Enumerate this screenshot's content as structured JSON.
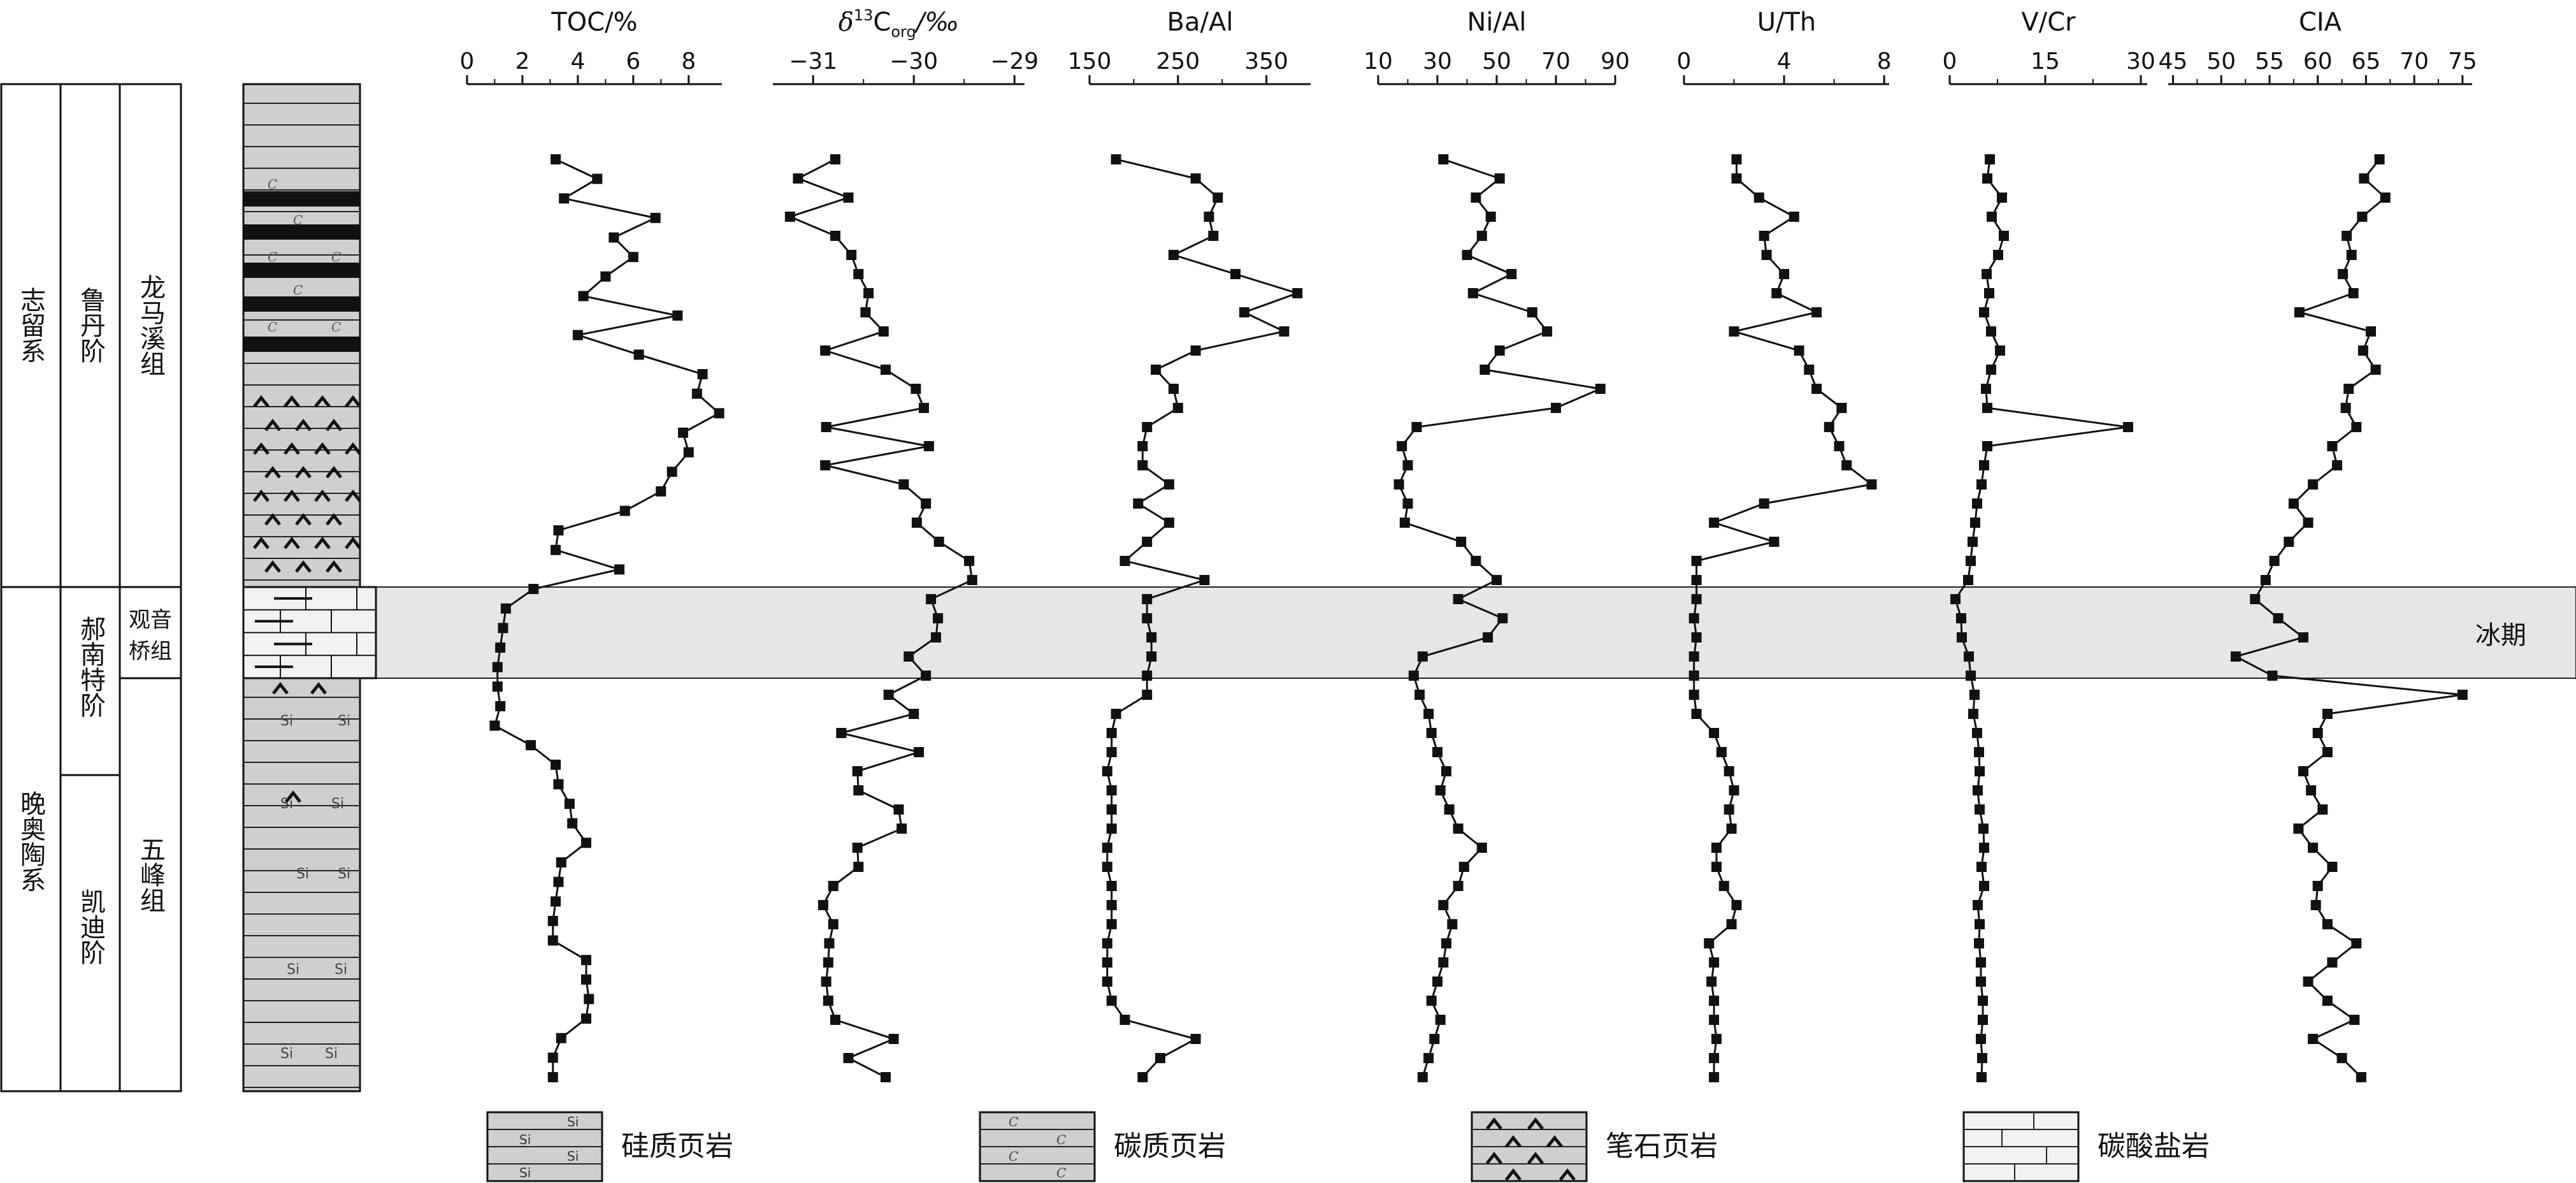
{
  "strat": {
    "system_upper": "志留系",
    "system_lower": "晚奥陶系",
    "stage_ludan": "鲁丹阶",
    "stage_hirnantian": "郝南特阶",
    "stage_katian": "凯迪阶",
    "formation_longmaxi": "龙马溪组",
    "formation_guanyinqiao": "观音桥组",
    "formation_wufeng": "五峰组",
    "glacial_label": "冰期",
    "column_marks": {
      "si": "Si",
      "c": "C"
    }
  },
  "legend": [
    {
      "key": "siliceous",
      "label": "硅质页岩"
    },
    {
      "key": "carbonaceous",
      "label": "碳质页岩"
    },
    {
      "key": "graptolite",
      "label": "笔石页岩"
    },
    {
      "key": "carbonate",
      "label": "碳酸盐岩"
    }
  ],
  "colors": {
    "band": "#e6e6e6",
    "column_fill": "#cfcfcf",
    "line": "#111111"
  },
  "chart_data": [
    {
      "type": "line",
      "title": "TOC/%",
      "xlim": [
        0,
        9.2
      ],
      "xticks": [
        "0",
        "2",
        "4",
        "6",
        "8"
      ],
      "xtick_values": [
        0,
        2,
        4,
        6,
        8
      ],
      "values": [
        3.2,
        4.7,
        3.5,
        6.8,
        5.3,
        6.0,
        5.0,
        4.2,
        7.6,
        4.0,
        6.2,
        8.5,
        8.3,
        9.1,
        7.8,
        8.0,
        7.4,
        7.0,
        5.7,
        3.3,
        3.2,
        5.5,
        2.4,
        1.4,
        1.3,
        1.2,
        1.1,
        1.1,
        1.2,
        1.0,
        2.3,
        3.2,
        3.3,
        3.7,
        3.8,
        4.3,
        3.4,
        3.3,
        3.2,
        3.1,
        3.1,
        4.3,
        4.3,
        4.4,
        4.3,
        3.4,
        3.1,
        3.1
      ]
    },
    {
      "type": "line",
      "title": "δ13Corg/‰",
      "title_main": "δ",
      "title_sup": "13",
      "title_c": "C",
      "title_sub": "org",
      "title_unit": "/‰",
      "xlim": [
        -31.4,
        -28.9
      ],
      "xticks": [
        "−31",
        "−30",
        "−29"
      ],
      "xtick_values": [
        -31,
        -30,
        -29
      ],
      "values": [
        -30.78,
        -31.15,
        -30.65,
        -31.23,
        -30.78,
        -30.62,
        -30.55,
        -30.45,
        -30.48,
        -30.3,
        -30.88,
        -30.28,
        -29.98,
        -29.9,
        -30.87,
        -29.85,
        -30.88,
        -30.1,
        -29.88,
        -29.97,
        -29.75,
        -29.45,
        -29.42,
        -29.83,
        -29.76,
        -29.78,
        -30.05,
        -29.88,
        -30.25,
        -30.0,
        -30.72,
        -29.95,
        -30.56,
        -30.55,
        -30.15,
        -30.12,
        -30.56,
        -30.55,
        -30.8,
        -30.9,
        -30.8,
        -30.84,
        -30.85,
        -30.87,
        -30.85,
        -30.78,
        -30.2,
        -30.65,
        -30.28
      ],
      "yidx": [
        0,
        1,
        2,
        3,
        4,
        5,
        6,
        7,
        8,
        9,
        10,
        11,
        12,
        13,
        14,
        15,
        16,
        17,
        18,
        19,
        20,
        21,
        22,
        23,
        24,
        25,
        26,
        27,
        28,
        29,
        30,
        31,
        32,
        33,
        34,
        35,
        36,
        37,
        38,
        39,
        40,
        41,
        42,
        43,
        44,
        45,
        46,
        47,
        48
      ]
    },
    {
      "type": "line",
      "title": "Ba/Al",
      "xlim": [
        150,
        400
      ],
      "xticks": [
        "150",
        "250",
        "350"
      ],
      "xtick_values": [
        150,
        250,
        350
      ],
      "values": [
        180,
        270,
        295,
        285,
        290,
        245,
        315,
        385,
        325,
        370,
        270,
        225,
        245,
        250,
        215,
        210,
        210,
        240,
        205,
        240,
        215,
        190,
        280,
        215,
        215,
        220,
        220,
        215,
        215,
        180,
        175,
        175,
        170,
        175,
        175,
        175,
        170,
        170,
        175,
        175,
        175,
        170,
        170,
        170,
        175,
        190,
        270,
        230,
        210
      ]
    },
    {
      "type": "line",
      "title": "Ni/Al",
      "xlim": [
        10,
        90
      ],
      "xticks": [
        "10",
        "30",
        "50",
        "70",
        "90"
      ],
      "xtick_values": [
        10,
        30,
        50,
        70,
        90
      ],
      "values": [
        32,
        51,
        43,
        48,
        45,
        40,
        55,
        42,
        62,
        67,
        51,
        46,
        85,
        70,
        23,
        18,
        20,
        17,
        20,
        19,
        38,
        43,
        50,
        37,
        52,
        47,
        25,
        22,
        24,
        27,
        28,
        30,
        33,
        31,
        34,
        37,
        45,
        39,
        37,
        32,
        35,
        33,
        32,
        30,
        28,
        31,
        29,
        27,
        25
      ]
    },
    {
      "type": "line",
      "title": "U/Th",
      "xlim": [
        0,
        8.2
      ],
      "xticks": [
        "0",
        "4",
        "8"
      ],
      "xtick_values": [
        0,
        4,
        8
      ],
      "values": [
        2.1,
        2.1,
        3.0,
        4.4,
        3.2,
        3.3,
        4.0,
        3.7,
        5.3,
        2.0,
        4.6,
        5.0,
        5.3,
        6.3,
        5.8,
        6.2,
        6.5,
        7.5,
        3.2,
        1.2,
        3.6,
        0.5,
        0.5,
        0.5,
        0.4,
        0.5,
        0.4,
        0.4,
        0.4,
        0.5,
        1.2,
        1.5,
        1.8,
        2.0,
        1.8,
        1.9,
        1.3,
        1.3,
        1.6,
        2.1,
        1.9,
        1.0,
        1.2,
        1.1,
        1.2,
        1.2,
        1.3,
        1.2,
        1.2
      ]
    },
    {
      "type": "line",
      "title": "V/Cr",
      "xlim": [
        0,
        31
      ],
      "xticks": [
        "0",
        "15",
        "30"
      ],
      "xtick_values": [
        0,
        15,
        30
      ],
      "values": [
        6.3,
        5.9,
        8.2,
        6.6,
        8.5,
        7.6,
        5.8,
        6.2,
        5.4,
        6.5,
        7.9,
        6.5,
        5.7,
        5.9,
        28,
        5.9,
        5.4,
        5.0,
        4.3,
        4.0,
        3.6,
        3.3,
        2.9,
        0.9,
        1.8,
        1.9,
        3.0,
        3.3,
        3.9,
        3.7,
        4.3,
        4.6,
        4.7,
        4.4,
        4.7,
        5.3,
        5.4,
        5.0,
        5.4,
        4.4,
        4.7,
        4.6,
        4.9,
        4.9,
        5.2,
        5.2,
        4.9,
        5.1,
        5.0
      ]
    },
    {
      "type": "line",
      "title": "CIA",
      "xlim": [
        44.5,
        76
      ],
      "xticks": [
        "45",
        "50",
        "55",
        "60",
        "65",
        "70",
        "75"
      ],
      "xtick_values": [
        45,
        50,
        55,
        60,
        65,
        70,
        75
      ],
      "values": [
        66.4,
        64.8,
        67.0,
        64.6,
        63.0,
        63.5,
        62.6,
        63.7,
        58.1,
        65.5,
        64.7,
        66.0,
        63.2,
        62.9,
        64.0,
        61.5,
        62.0,
        59.5,
        57.5,
        59.0,
        57.0,
        55.5,
        54.6,
        53.5,
        55.9,
        58.5,
        51.5,
        55.3,
        75.0,
        61.0,
        60.0,
        61.0,
        58.5,
        59.3,
        60.5,
        58.0,
        59.5,
        61.5,
        60.0,
        59.8,
        61.0,
        64.0,
        61.5,
        59.0,
        61.0,
        63.8,
        59.5,
        62.5,
        64.5
      ]
    }
  ]
}
